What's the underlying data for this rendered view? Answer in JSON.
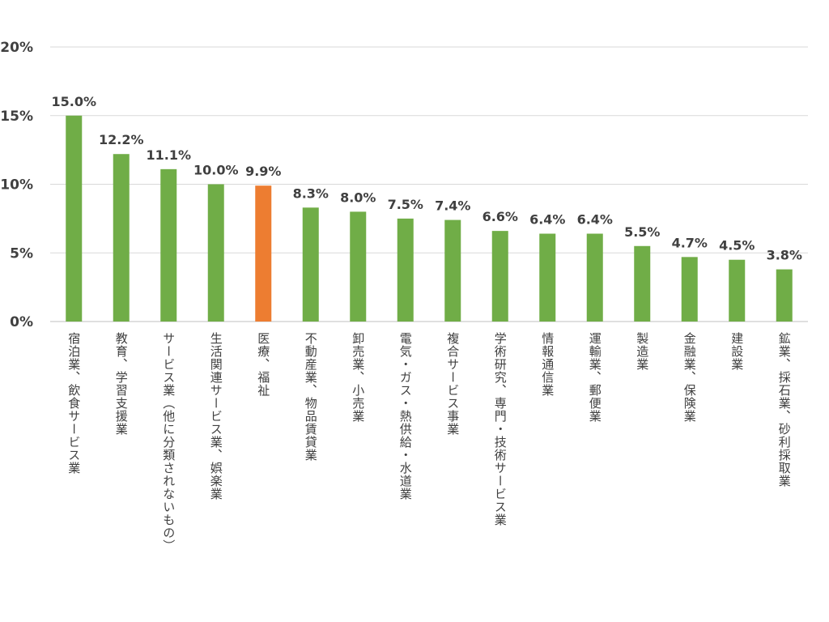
{
  "chart_data": {
    "type": "bar",
    "categories": [
      "宿泊業、飲食サービス業",
      "教育、学習支援業",
      "サービス業（他に分類されないもの）",
      "生活関連サービス業、娯楽業",
      "医療、福祉",
      "不動産業、物品賃貸業",
      "卸売業、小売業",
      "電気・ガス・熱供給・水道業",
      "複合サービス事業",
      "学術研究、専門・技術サービス業",
      "情報通信業",
      "運輸業、郵便業",
      "製造業",
      "金融業、保険業",
      "建設業",
      "鉱業、採石業、砂利採取業"
    ],
    "values": [
      15.0,
      12.2,
      11.1,
      10.0,
      9.9,
      8.3,
      8.0,
      7.5,
      7.4,
      6.6,
      6.4,
      6.4,
      5.5,
      4.7,
      4.5,
      3.8
    ],
    "data_labels": [
      "15.0%",
      "12.2%",
      "11.1%",
      "10.0%",
      "9.9%",
      "8.3%",
      "8.0%",
      "7.5%",
      "7.4%",
      "6.6%",
      "6.4%",
      "6.4%",
      "5.5%",
      "4.7%",
      "4.5%",
      "3.8%"
    ],
    "highlight_index": 4,
    "y_ticks": [
      0,
      5,
      10,
      15,
      20
    ],
    "y_tick_labels": [
      "0%",
      "5%",
      "10%",
      "15%",
      "20%"
    ],
    "ylim": [
      0,
      20
    ],
    "grid": true,
    "title": "",
    "xlabel": "",
    "ylabel": "",
    "colors": {
      "bar": "#70ad47",
      "highlight": "#ed7d31",
      "grid": "#d9d9d9",
      "text": "#404040"
    }
  }
}
